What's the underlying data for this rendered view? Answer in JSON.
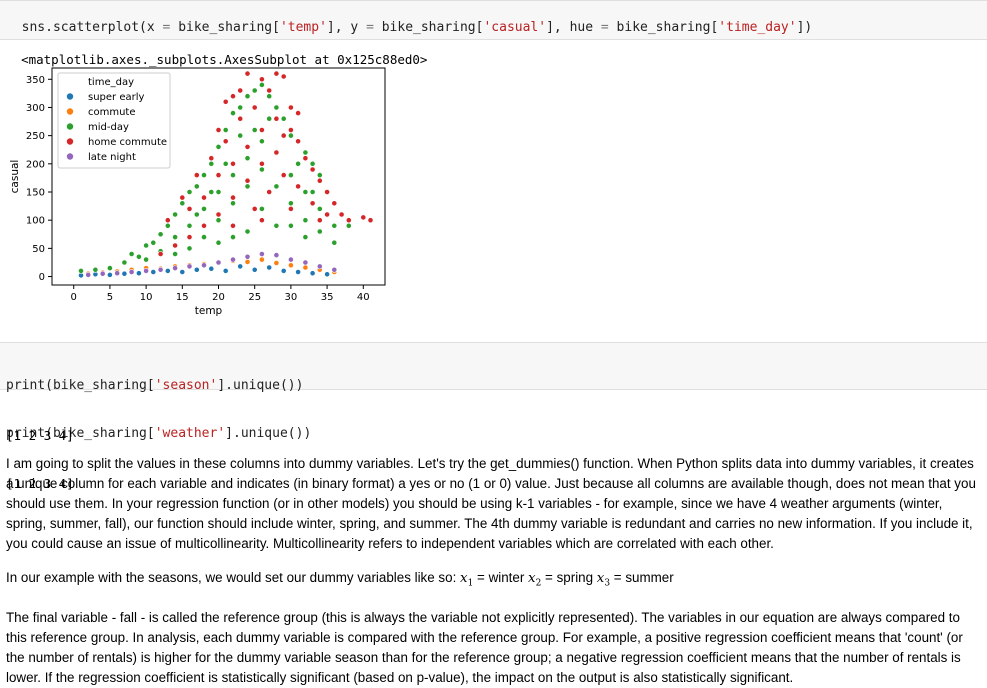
{
  "cell1": {
    "code_parts": [
      {
        "t": "sns.scatterplot(x ",
        "c": "kw"
      },
      {
        "t": "=",
        "c": "op"
      },
      {
        "t": " bike_sharing[",
        "c": "kw"
      },
      {
        "t": "'temp'",
        "c": "str"
      },
      {
        "t": "], y ",
        "c": "kw"
      },
      {
        "t": "=",
        "c": "op"
      },
      {
        "t": " bike_sharing[",
        "c": "kw"
      },
      {
        "t": "'casual'",
        "c": "str"
      },
      {
        "t": "], hue ",
        "c": "kw"
      },
      {
        "t": "=",
        "c": "op"
      },
      {
        "t": " bike_sharing[",
        "c": "kw"
      },
      {
        "t": "'time_day'",
        "c": "str"
      },
      {
        "t": "])",
        "c": "kw"
      }
    ],
    "output": "<matplotlib.axes._subplots.AxesSubplot at 0x125c88ed0>"
  },
  "cell2": {
    "line1_parts": [
      {
        "t": "print(bike_sharing[",
        "c": "kw"
      },
      {
        "t": "'season'",
        "c": "str"
      },
      {
        "t": "].unique())",
        "c": "kw"
      }
    ],
    "line2_parts": [
      {
        "t": "print(bike_sharing[",
        "c": "kw"
      },
      {
        "t": "'weather'",
        "c": "str"
      },
      {
        "t": "].unique())",
        "c": "kw"
      }
    ],
    "output_line1": "[1 2 3 4]",
    "output_line2": "[1 2 3 4]"
  },
  "markdown": {
    "para1": "I am going to split the values in these columns into dummy variables. Let's try the get_dummies() function. When Python splits data into dummy variables, it creates a unique column for each variable and indicates (in binary format) a yes or no (1 or 0) value. Just because all columns are available though, does not mean that you should use them. In your regression function (or in other models) you should be using k-1 variables - for example, since we have 4 weather arguments (winter, spring, summer, fall), our function should include winter, spring, and summer. The 4th dummy variable is redundant and carries no new information. If you include it, you could cause an issue of multicollinearity. Multicollinearity refers to independent variables which are correlated with each other.",
    "para2_prefix": "In our example with the seasons, we would set our dummy variables like so:",
    "para2_terms": [
      {
        "var": "x",
        "sub": "1",
        "value": "= winter"
      },
      {
        "var": "x",
        "sub": "2",
        "value": "= spring"
      },
      {
        "var": "x",
        "sub": "3",
        "value": "= summer"
      }
    ],
    "para3": "The final variable - fall - is called the reference group (this is always the variable not explicitly represented). The variables in our equation are always compared to this reference group. In analysis, each dummy variable is compared with the reference group. For example, a positive regression coefficient means that 'count' (or the number of rentals) is higher for the dummy variable season than for the reference group; a negative regression coefficient means that the number of rentals is lower. If the regression coefficient is statistically significant (based on p-value), the impact on the output is also statistically significant."
  },
  "chart_data": {
    "type": "scatter",
    "xlabel": "temp",
    "ylabel": "casual",
    "xlim": [
      -3,
      43
    ],
    "ylim": [
      -15,
      370
    ],
    "xticks": [
      0,
      5,
      10,
      15,
      20,
      25,
      30,
      35,
      40
    ],
    "yticks": [
      0,
      50,
      100,
      150,
      200,
      250,
      300,
      350
    ],
    "grid": false,
    "legend_title": "time_day",
    "legend_position": "upper-left",
    "series": [
      {
        "name": "super early",
        "color": "#1f77b4",
        "points": [
          [
            1,
            2
          ],
          [
            3,
            4
          ],
          [
            5,
            3
          ],
          [
            7,
            5
          ],
          [
            9,
            6
          ],
          [
            11,
            8
          ],
          [
            13,
            10
          ],
          [
            15,
            8
          ],
          [
            17,
            12
          ],
          [
            19,
            14
          ],
          [
            21,
            10
          ],
          [
            23,
            18
          ],
          [
            25,
            12
          ],
          [
            27,
            16
          ],
          [
            29,
            10
          ],
          [
            31,
            8
          ],
          [
            33,
            6
          ],
          [
            35,
            4
          ]
        ]
      },
      {
        "name": "commute",
        "color": "#ff7f0e",
        "points": [
          [
            2,
            5
          ],
          [
            4,
            7
          ],
          [
            6,
            9
          ],
          [
            8,
            12
          ],
          [
            10,
            15
          ],
          [
            12,
            14
          ],
          [
            14,
            18
          ],
          [
            16,
            20
          ],
          [
            18,
            22
          ],
          [
            20,
            25
          ],
          [
            22,
            28
          ],
          [
            24,
            26
          ],
          [
            26,
            30
          ],
          [
            28,
            24
          ],
          [
            30,
            20
          ],
          [
            32,
            16
          ],
          [
            34,
            12
          ],
          [
            36,
            8
          ]
        ]
      },
      {
        "name": "mid-day",
        "color": "#2ca02c",
        "points": [
          [
            1,
            10
          ],
          [
            3,
            12
          ],
          [
            5,
            15
          ],
          [
            7,
            25
          ],
          [
            8,
            40
          ],
          [
            9,
            35
          ],
          [
            10,
            55
          ],
          [
            11,
            60
          ],
          [
            12,
            75
          ],
          [
            13,
            90
          ],
          [
            14,
            110
          ],
          [
            15,
            130
          ],
          [
            16,
            150
          ],
          [
            17,
            160
          ],
          [
            18,
            180
          ],
          [
            19,
            200
          ],
          [
            20,
            230
          ],
          [
            21,
            260
          ],
          [
            22,
            290
          ],
          [
            23,
            300
          ],
          [
            24,
            320
          ],
          [
            25,
            330
          ],
          [
            26,
            340
          ],
          [
            27,
            320
          ],
          [
            28,
            300
          ],
          [
            29,
            280
          ],
          [
            30,
            250
          ],
          [
            31,
            240
          ],
          [
            32,
            220
          ],
          [
            33,
            200
          ],
          [
            34,
            180
          ],
          [
            35,
            150
          ],
          [
            36,
            130
          ],
          [
            37,
            110
          ],
          [
            38,
            90
          ],
          [
            10,
            30
          ],
          [
            12,
            45
          ],
          [
            14,
            70
          ],
          [
            16,
            90
          ],
          [
            18,
            120
          ],
          [
            20,
            150
          ],
          [
            22,
            180
          ],
          [
            24,
            210
          ],
          [
            26,
            240
          ],
          [
            28,
            220
          ],
          [
            30,
            180
          ],
          [
            32,
            150
          ],
          [
            34,
            120
          ],
          [
            36,
            90
          ],
          [
            20,
            100
          ],
          [
            22,
            130
          ],
          [
            24,
            160
          ],
          [
            26,
            190
          ],
          [
            28,
            160
          ],
          [
            30,
            130
          ],
          [
            32,
            100
          ],
          [
            20,
            60
          ],
          [
            24,
            80
          ],
          [
            28,
            90
          ],
          [
            32,
            70
          ],
          [
            36,
            60
          ],
          [
            18,
            70
          ],
          [
            14,
            40
          ],
          [
            16,
            50
          ],
          [
            22,
            70
          ],
          [
            26,
            120
          ],
          [
            30,
            90
          ],
          [
            34,
            80
          ],
          [
            25,
            260
          ],
          [
            27,
            280
          ],
          [
            23,
            250
          ],
          [
            21,
            200
          ],
          [
            19,
            150
          ],
          [
            17,
            110
          ],
          [
            31,
            200
          ],
          [
            33,
            150
          ],
          [
            35,
            110
          ]
        ]
      },
      {
        "name": "home commute",
        "color": "#d62728",
        "points": [
          [
            12,
            40
          ],
          [
            14,
            55
          ],
          [
            16,
            70
          ],
          [
            18,
            90
          ],
          [
            20,
            110
          ],
          [
            22,
            140
          ],
          [
            24,
            170
          ],
          [
            26,
            200
          ],
          [
            28,
            220
          ],
          [
            29,
            250
          ],
          [
            30,
            260
          ],
          [
            31,
            240
          ],
          [
            32,
            210
          ],
          [
            33,
            190
          ],
          [
            34,
            170
          ],
          [
            35,
            150
          ],
          [
            36,
            130
          ],
          [
            37,
            110
          ],
          [
            38,
            100
          ],
          [
            40,
            105
          ],
          [
            41,
            100
          ],
          [
            24,
            360
          ],
          [
            26,
            350
          ],
          [
            28,
            360
          ],
          [
            29,
            355
          ],
          [
            27,
            330
          ],
          [
            25,
            300
          ],
          [
            23,
            280
          ],
          [
            21,
            240
          ],
          [
            19,
            210
          ],
          [
            17,
            180
          ],
          [
            15,
            140
          ],
          [
            13,
            100
          ],
          [
            20,
            180
          ],
          [
            22,
            200
          ],
          [
            24,
            230
          ],
          [
            26,
            260
          ],
          [
            28,
            280
          ],
          [
            30,
            300
          ],
          [
            31,
            290
          ],
          [
            25,
            120
          ],
          [
            27,
            150
          ],
          [
            29,
            180
          ],
          [
            31,
            160
          ],
          [
            33,
            130
          ],
          [
            35,
            110
          ],
          [
            22,
            90
          ],
          [
            26,
            100
          ],
          [
            30,
            120
          ],
          [
            34,
            100
          ],
          [
            18,
            140
          ],
          [
            16,
            120
          ],
          [
            20,
            260
          ],
          [
            22,
            320
          ],
          [
            23,
            330
          ],
          [
            21,
            310
          ]
        ]
      },
      {
        "name": "late night",
        "color": "#9467bd",
        "points": [
          [
            2,
            3
          ],
          [
            4,
            5
          ],
          [
            6,
            6
          ],
          [
            8,
            8
          ],
          [
            10,
            10
          ],
          [
            12,
            12
          ],
          [
            14,
            15
          ],
          [
            16,
            18
          ],
          [
            18,
            20
          ],
          [
            20,
            25
          ],
          [
            22,
            30
          ],
          [
            24,
            35
          ],
          [
            26,
            40
          ],
          [
            28,
            38
          ],
          [
            30,
            30
          ],
          [
            32,
            25
          ],
          [
            34,
            18
          ],
          [
            36,
            12
          ]
        ]
      }
    ]
  }
}
